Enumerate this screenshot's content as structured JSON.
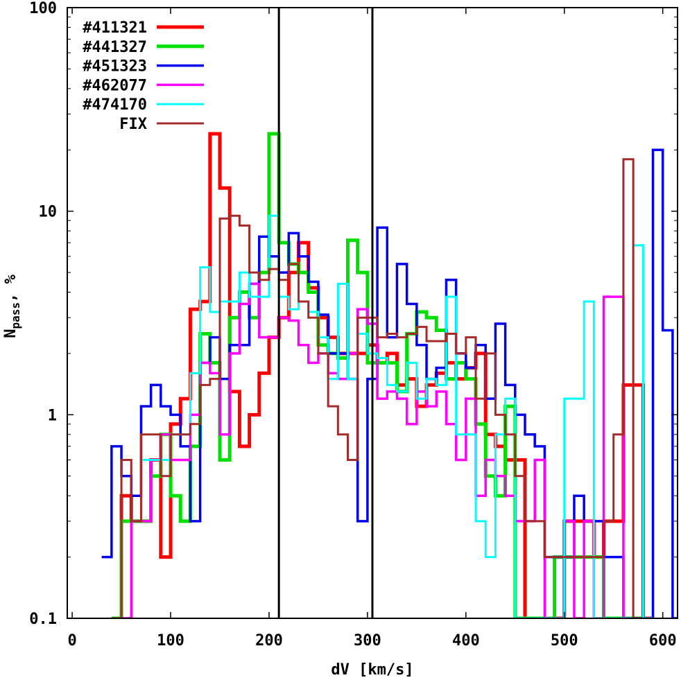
{
  "chart_data": {
    "type": "line",
    "style": "step histogram",
    "xlabel": "dV [km/s]",
    "ylabel": "N",
    "ylabel_sub": "pass",
    "ylabel_suffix": ", %",
    "xlim": [
      -5,
      615
    ],
    "ylim": [
      0.1,
      100
    ],
    "yscale": "log",
    "grid": false,
    "legend_position": "top-left",
    "x_ticks": [
      0,
      100,
      200,
      300,
      400,
      500,
      600
    ],
    "x_tick_labels": [
      "0",
      "100",
      "200",
      "300",
      "400",
      "500",
      "600"
    ],
    "y_ticks": [
      0.1,
      1,
      10,
      100
    ],
    "y_tick_labels": [
      "0.1",
      "1",
      "10",
      "100"
    ],
    "vertical_lines": [
      210,
      305
    ],
    "series": [
      {
        "name": "#411321",
        "color": "#ff0000",
        "width": 5,
        "x": [
          40,
          50,
          60,
          70,
          80,
          90,
          100,
          110,
          120,
          130,
          140,
          150,
          160,
          170,
          180,
          190,
          200,
          210,
          220,
          230,
          240,
          250,
          260,
          270,
          280,
          290,
          300,
          310,
          320,
          330,
          340,
          350,
          360,
          370,
          380,
          390,
          400,
          410,
          420,
          430,
          440,
          450,
          460,
          470,
          480,
          490,
          500,
          510,
          520,
          530,
          540,
          550,
          560,
          570,
          580
        ],
        "y": [
          0.1,
          0.4,
          0.3,
          0.3,
          0.6,
          0.2,
          0.9,
          1.2,
          3.3,
          3.6,
          24,
          13,
          1.3,
          0.7,
          1.0,
          1.6,
          2.4,
          3.0,
          5.0,
          7.0,
          4.2,
          3.0,
          2.4,
          2.0,
          2.0,
          2.0,
          2.2,
          1.8,
          2.0,
          1.4,
          1.5,
          1.1,
          1.4,
          1.6,
          1.8,
          1.5,
          1.7,
          2.0,
          0.8,
          0.7,
          0.6,
          0.6,
          0.1,
          0.1,
          0.1,
          0.1,
          0.3,
          0.3,
          0.3,
          0.2,
          0.3,
          0.3,
          1.4,
          1.4,
          0.1
        ]
      },
      {
        "name": "#441327",
        "color": "#00e000",
        "width": 5,
        "x": [
          40,
          50,
          60,
          70,
          80,
          90,
          100,
          110,
          120,
          130,
          140,
          150,
          160,
          170,
          180,
          190,
          200,
          210,
          220,
          230,
          240,
          250,
          260,
          270,
          280,
          290,
          300,
          310,
          320,
          330,
          340,
          350,
          360,
          370,
          380,
          390,
          400,
          410,
          420,
          430,
          440,
          450,
          460,
          470,
          480,
          490,
          500,
          510,
          520,
          530,
          540,
          550,
          560,
          570
        ],
        "y": [
          0.1,
          0.3,
          0.3,
          0.3,
          0.5,
          0.8,
          0.4,
          0.3,
          0.7,
          2.5,
          1.8,
          0.6,
          3.0,
          4.0,
          3.0,
          5.0,
          24,
          7.0,
          5.5,
          5.0,
          4.0,
          2.2,
          2.0,
          1.9,
          7.2,
          5.0,
          1.8,
          1.8,
          1.8,
          1.3,
          2.5,
          3.2,
          3.0,
          2.6,
          1.5,
          1.8,
          1.5,
          0.9,
          0.5,
          0.4,
          1.1,
          0.1,
          0.1,
          0.1,
          0.1,
          0.2,
          0.2,
          0.2,
          0.2,
          0.2,
          0.1,
          0.1,
          0.1,
          0.1
        ]
      },
      {
        "name": "#451323",
        "color": "#0000ee",
        "width": 3.5,
        "x": [
          30,
          40,
          50,
          60,
          70,
          80,
          90,
          100,
          110,
          120,
          130,
          140,
          150,
          160,
          170,
          180,
          190,
          200,
          210,
          220,
          230,
          240,
          250,
          260,
          270,
          280,
          290,
          300,
          310,
          320,
          330,
          340,
          350,
          360,
          370,
          380,
          390,
          400,
          410,
          420,
          430,
          440,
          450,
          460,
          470,
          480,
          490,
          500,
          510,
          520,
          530,
          540,
          550,
          560,
          570,
          580,
          590,
          600,
          610
        ],
        "y": [
          0.2,
          0.7,
          0.5,
          0.4,
          1.1,
          1.4,
          1.1,
          1.0,
          0.7,
          0.3,
          1.8,
          2.4,
          1.5,
          2.2,
          2.2,
          4.4,
          7.5,
          6.0,
          5.0,
          7.8,
          6.0,
          4.5,
          3.1,
          2.0,
          2.0,
          1.5,
          0.3,
          1.5,
          8.3,
          2.4,
          5.5,
          3.5,
          2.2,
          1.5,
          1.7,
          4.6,
          2.0,
          1.7,
          2.2,
          1.2,
          2.8,
          1.4,
          1.0,
          0.8,
          0.7,
          0.2,
          0.2,
          0.2,
          0.4,
          0.3,
          0.3,
          0.2,
          0.2,
          0.1,
          0.1,
          0.1,
          20,
          2.6,
          0.1
        ]
      },
      {
        "name": "#462077",
        "color": "#ff00ff",
        "width": 3.5,
        "x": [
          50,
          60,
          70,
          80,
          90,
          100,
          110,
          120,
          130,
          140,
          150,
          160,
          170,
          180,
          190,
          200,
          210,
          220,
          230,
          240,
          250,
          260,
          270,
          280,
          290,
          300,
          310,
          320,
          330,
          340,
          350,
          360,
          370,
          380,
          390,
          400,
          410,
          420,
          430,
          440,
          450,
          460,
          470,
          480,
          490,
          500,
          510,
          520,
          530,
          540,
          550,
          560
        ],
        "y": [
          0.1,
          0.3,
          0.3,
          0.6,
          0.8,
          0.6,
          0.6,
          1.0,
          1.8,
          1.6,
          0.8,
          2.0,
          3.5,
          4.4,
          2.4,
          2.4,
          3.0,
          2.9,
          2.2,
          1.8,
          2.0,
          1.6,
          1.5,
          2.0,
          3.3,
          2.8,
          1.2,
          1.3,
          1.2,
          0.9,
          1.3,
          1.1,
          1.3,
          0.9,
          0.6,
          1.2,
          0.4,
          0.6,
          0.5,
          0.4,
          0.3,
          0.3,
          0.6,
          0.1,
          0.1,
          0.3,
          0.1,
          0.3,
          0.1,
          3.8,
          3.8,
          0.1
        ]
      },
      {
        "name": "#474170",
        "color": "#00ffff",
        "width": 3,
        "x": [
          70,
          80,
          90,
          100,
          110,
          120,
          130,
          140,
          150,
          160,
          170,
          180,
          190,
          200,
          210,
          220,
          230,
          240,
          250,
          260,
          270,
          280,
          290,
          300,
          310,
          320,
          330,
          340,
          350,
          360,
          370,
          380,
          390,
          400,
          410,
          420,
          430,
          440,
          450,
          460,
          470,
          480,
          490,
          500,
          510,
          520,
          530,
          540,
          550,
          560,
          570,
          580
        ],
        "y": [
          0.6,
          0.6,
          0.6,
          0.8,
          0.8,
          1.6,
          5.3,
          3.2,
          3.6,
          3.6,
          5.0,
          3.8,
          3.8,
          9.5,
          3.8,
          3.3,
          3.6,
          3.2,
          2.4,
          1.5,
          4.4,
          1.5,
          2.5,
          2.0,
          1.9,
          1.4,
          1.3,
          1.8,
          1.2,
          1.5,
          1.4,
          3.8,
          0.8,
          0.8,
          0.3,
          0.2,
          0.8,
          1.2,
          0.1,
          0.1,
          0.1,
          0.1,
          0.1,
          1.2,
          1.2,
          3.6,
          0.1,
          0.1,
          0.1,
          0.1,
          6.8,
          0.1
        ]
      },
      {
        "name": "FIX",
        "color": "#a52a2a",
        "width": 3,
        "x": [
          40,
          50,
          60,
          70,
          80,
          90,
          100,
          110,
          120,
          130,
          140,
          150,
          160,
          170,
          180,
          190,
          200,
          210,
          220,
          230,
          240,
          250,
          260,
          270,
          280,
          290,
          300,
          310,
          320,
          330,
          340,
          350,
          360,
          370,
          380,
          390,
          400,
          410,
          420,
          430,
          440,
          450,
          460,
          470,
          480,
          490,
          500,
          510,
          520,
          530,
          540,
          550,
          560,
          570
        ],
        "y": [
          0.1,
          0.6,
          0.3,
          0.8,
          0.8,
          0.5,
          0.8,
          0.8,
          0.9,
          1.4,
          1.5,
          9.2,
          9.5,
          8.5,
          5.0,
          4.6,
          5.2,
          4.6,
          5.5,
          3.6,
          3.0,
          2.0,
          1.1,
          0.8,
          0.6,
          3.0,
          3.0,
          2.4,
          2.5,
          2.4,
          2.5,
          2.7,
          2.3,
          2.3,
          2.5,
          2.0,
          2.4,
          1.2,
          2.0,
          1.0,
          0.8,
          0.5,
          0.3,
          0.3,
          0.2,
          0.2,
          0.2,
          0.2,
          0.2,
          0.2,
          0.3,
          0.8,
          18,
          0.1
        ]
      }
    ]
  }
}
